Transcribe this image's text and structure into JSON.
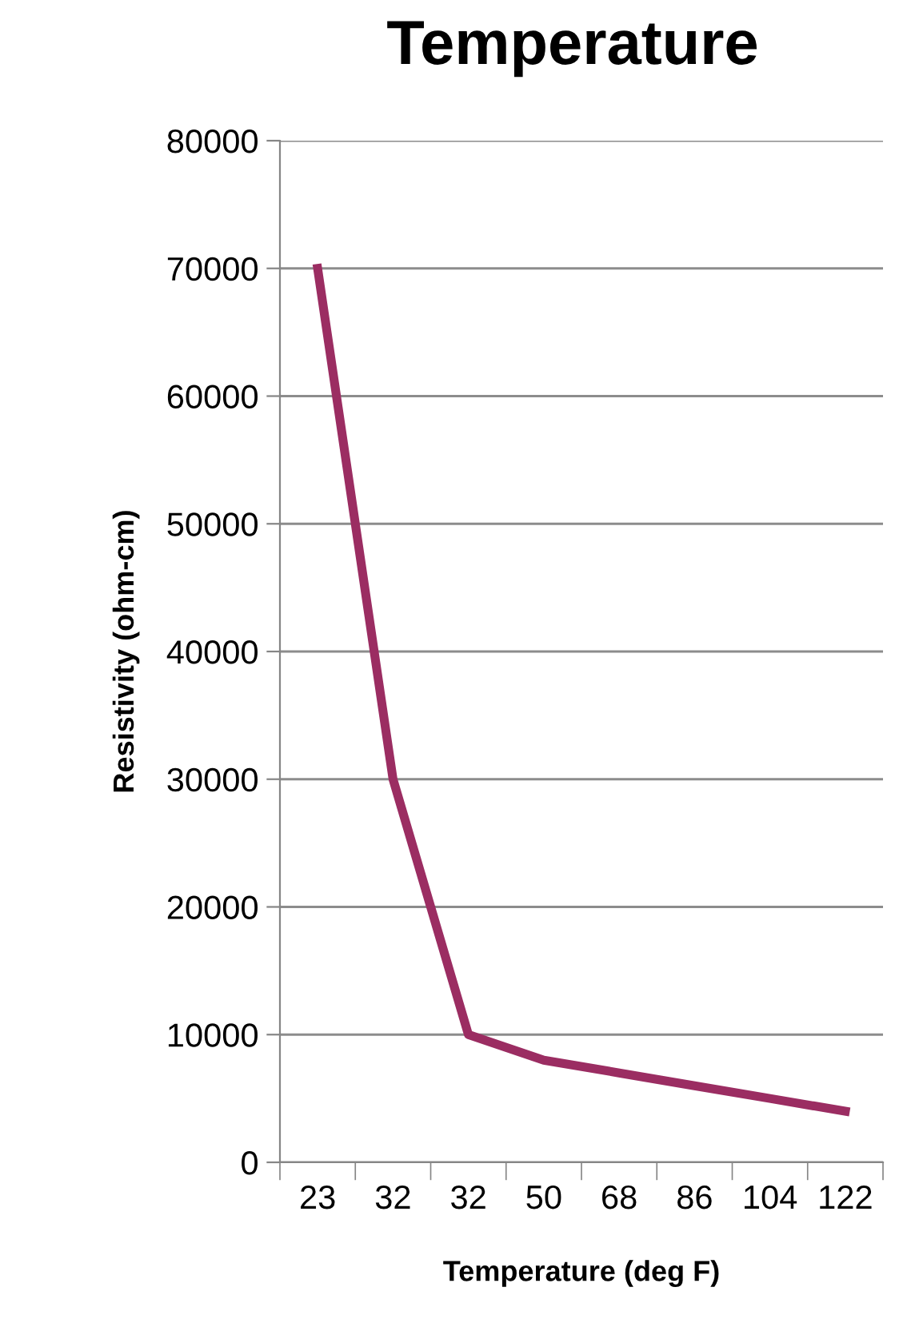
{
  "chart_data": {
    "type": "line",
    "title": "Temperature",
    "xlabel": "Temperature (deg F)",
    "ylabel": "Resistivity (ohm-cm)",
    "categories": [
      "23",
      "32",
      "32",
      "50",
      "68",
      "86",
      "104",
      "122"
    ],
    "series": [
      {
        "color": "#9b2d62",
        "values": [
          70000,
          30000,
          10000,
          8000,
          7000,
          6000,
          5000,
          4000
        ]
      }
    ],
    "ylim": [
      0,
      80000
    ],
    "yticks": [
      0,
      10000,
      20000,
      30000,
      40000,
      50000,
      60000,
      70000,
      80000
    ],
    "grid": "y",
    "legend": false,
    "marker": "none",
    "line_style": "solid"
  }
}
